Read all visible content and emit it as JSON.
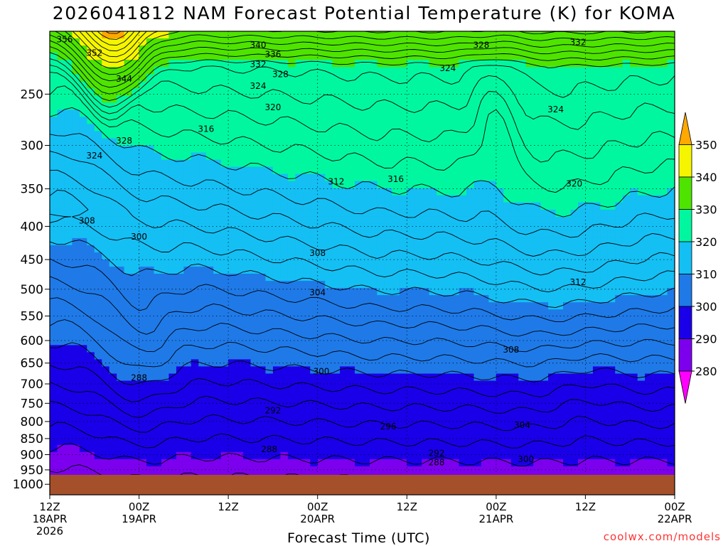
{
  "title": "2026041812 NAM Forecast Potential Temperature (K) for KOMA",
  "chart_data": {
    "type": "heatmap",
    "title": "2026041812 NAM Forecast Potential Temperature (K) for KOMA",
    "xlabel": "Forecast Time (UTC)",
    "ylabel": "",
    "y_axis": {
      "scale": "pressure (log)",
      "ticks": [
        250,
        300,
        350,
        400,
        450,
        500,
        550,
        600,
        650,
        700,
        750,
        800,
        850,
        900,
        950,
        1000
      ],
      "range": [
        1000,
        200
      ]
    },
    "x_axis": {
      "range_hours": [
        0,
        84
      ],
      "ticks": [
        {
          "hour": 0,
          "labels": [
            "12Z",
            "18APR",
            "2026"
          ]
        },
        {
          "hour": 12,
          "labels": [
            "00Z",
            "19APR"
          ]
        },
        {
          "hour": 24,
          "labels": [
            "12Z"
          ]
        },
        {
          "hour": 36,
          "labels": [
            "00Z",
            "20APR"
          ]
        },
        {
          "hour": 48,
          "labels": [
            "12Z"
          ]
        },
        {
          "hour": 60,
          "labels": [
            "00Z",
            "21APR"
          ]
        },
        {
          "hour": 72,
          "labels": [
            "12Z"
          ]
        },
        {
          "hour": 84,
          "labels": [
            "00Z",
            "22APR"
          ]
        }
      ]
    },
    "colorbar": {
      "ticks": [
        280,
        290,
        300,
        310,
        320,
        330,
        340,
        350
      ],
      "bins": [
        {
          "range": [
            270,
            280
          ],
          "color": "#ff00ff"
        },
        {
          "range": [
            280,
            290
          ],
          "color": "#7c00ee"
        },
        {
          "range": [
            290,
            300
          ],
          "color": "#1a00e8"
        },
        {
          "range": [
            300,
            310
          ],
          "color": "#1f7ae8"
        },
        {
          "range": [
            310,
            320
          ],
          "color": "#14bff4"
        },
        {
          "range": [
            320,
            330
          ],
          "color": "#00f7a0"
        },
        {
          "range": [
            330,
            340
          ],
          "color": "#4ee400"
        },
        {
          "range": [
            340,
            350
          ],
          "color": "#f5f500"
        },
        {
          "range": [
            350,
            360
          ],
          "color": "#ffa800"
        }
      ]
    },
    "contour_interval_K": 2,
    "contour_labels": [
      {
        "value": 356,
        "hour": 2,
        "pres": 206
      },
      {
        "value": 352,
        "hour": 6,
        "pres": 216
      },
      {
        "value": 344,
        "hour": 10,
        "pres": 237
      },
      {
        "value": 340,
        "hour": 28,
        "pres": 210
      },
      {
        "value": 336,
        "hour": 30,
        "pres": 217
      },
      {
        "value": 332,
        "hour": 28,
        "pres": 225
      },
      {
        "value": 328,
        "hour": 31,
        "pres": 233
      },
      {
        "value": 324,
        "hour": 28,
        "pres": 243
      },
      {
        "value": 320,
        "hour": 30,
        "pres": 262
      },
      {
        "value": 316,
        "hour": 21,
        "pres": 283
      },
      {
        "value": 328,
        "hour": 10,
        "pres": 295
      },
      {
        "value": 324,
        "hour": 6,
        "pres": 311
      },
      {
        "value": 328,
        "hour": 58,
        "pres": 210
      },
      {
        "value": 324,
        "hour": 53.5,
        "pres": 228
      },
      {
        "value": 332,
        "hour": 71,
        "pres": 208
      },
      {
        "value": 324,
        "hour": 68,
        "pres": 264
      },
      {
        "value": 312,
        "hour": 38.5,
        "pres": 341
      },
      {
        "value": 316,
        "hour": 46.5,
        "pres": 338
      },
      {
        "value": 320,
        "hour": 70.5,
        "pres": 344
      },
      {
        "value": 308,
        "hour": 5,
        "pres": 392
      },
      {
        "value": 300,
        "hour": 12,
        "pres": 415
      },
      {
        "value": 308,
        "hour": 36,
        "pres": 440
      },
      {
        "value": 312,
        "hour": 71,
        "pres": 488
      },
      {
        "value": 304,
        "hour": 36,
        "pres": 506
      },
      {
        "value": 308,
        "hour": 62,
        "pres": 620
      },
      {
        "value": 300,
        "hour": 36.5,
        "pres": 670
      },
      {
        "value": 288,
        "hour": 12,
        "pres": 685
      },
      {
        "value": 292,
        "hour": 30,
        "pres": 770
      },
      {
        "value": 296,
        "hour": 45.5,
        "pres": 815
      },
      {
        "value": 304,
        "hour": 63.5,
        "pres": 810
      },
      {
        "value": 288,
        "hour": 29.5,
        "pres": 883
      },
      {
        "value": 292,
        "hour": 52,
        "pres": 895
      },
      {
        "value": 288,
        "hour": 52,
        "pres": 925
      },
      {
        "value": 300,
        "hour": 64,
        "pres": 915
      }
    ]
  },
  "x_axis_label": "Forecast Time (UTC)",
  "credit": "coolwx.com/models"
}
